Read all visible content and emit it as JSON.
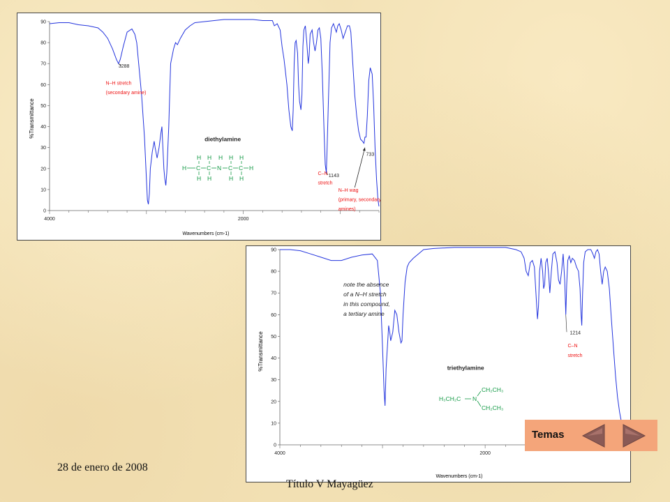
{
  "chart_data": [
    {
      "type": "line",
      "compound": "diethylamine",
      "xlabel": "Wavenumbers (cm-1)",
      "ylabel": "%Transmittance",
      "xlim": [
        4000,
        600
      ],
      "ylim": [
        0,
        90
      ],
      "x_ticks": [
        4000,
        2000
      ],
      "x_tick_labels": [
        "4000",
        "2000"
      ],
      "y_ticks": [
        0,
        10,
        20,
        30,
        40,
        50,
        60,
        70,
        80,
        90
      ],
      "y_tick_labels": [
        "0",
        "10",
        "20",
        "30",
        "40",
        "50",
        "60",
        "70",
        "80",
        "90"
      ],
      "series": [
        {
          "values": [
            [
              4000,
              89
            ],
            [
              3900,
              89.5
            ],
            [
              3800,
              89.5
            ],
            [
              3700,
              88.5
            ],
            [
              3600,
              88
            ],
            [
              3500,
              87
            ],
            [
              3450,
              85
            ],
            [
              3400,
              82
            ],
            [
              3350,
              77
            ],
            [
              3310,
              72
            ],
            [
              3288,
              70
            ],
            [
              3270,
              72
            ],
            [
              3240,
              78
            ],
            [
              3200,
              85
            ],
            [
              3150,
              86.5
            ],
            [
              3120,
              84
            ],
            [
              3100,
              80
            ],
            [
              3080,
              70
            ],
            [
              3050,
              55
            ],
            [
              3020,
              35
            ],
            [
              3000,
              15
            ],
            [
              2990,
              5
            ],
            [
              2980,
              3
            ],
            [
              2970,
              8
            ],
            [
              2960,
              20
            ],
            [
              2940,
              28
            ],
            [
              2920,
              33
            ],
            [
              2910,
              30
            ],
            [
              2890,
              25
            ],
            [
              2870,
              30
            ],
            [
              2850,
              37
            ],
            [
              2840,
              40
            ],
            [
              2820,
              20
            ],
            [
              2810,
              15
            ],
            [
              2800,
              12
            ],
            [
              2790,
              18
            ],
            [
              2770,
              40
            ],
            [
              2750,
              70
            ],
            [
              2720,
              77
            ],
            [
              2700,
              80
            ],
            [
              2680,
              79
            ],
            [
              2650,
              82
            ],
            [
              2600,
              86
            ],
            [
              2550,
              88
            ],
            [
              2500,
              89.5
            ],
            [
              2300,
              90.5
            ],
            [
              2200,
              91
            ],
            [
              2100,
              91
            ],
            [
              2000,
              91
            ],
            [
              1900,
              91
            ],
            [
              1800,
              90.5
            ],
            [
              1700,
              90.5
            ],
            [
              1680,
              88
            ],
            [
              1650,
              89
            ],
            [
              1620,
              86
            ],
            [
              1600,
              78
            ],
            [
              1580,
              72
            ],
            [
              1550,
              60
            ],
            [
              1530,
              48
            ],
            [
              1510,
              40
            ],
            [
              1495,
              38
            ],
            [
              1485,
              48
            ],
            [
              1475,
              70
            ],
            [
              1465,
              80
            ],
            [
              1455,
              81
            ],
            [
              1440,
              75
            ],
            [
              1430,
              60
            ],
            [
              1420,
              52
            ],
            [
              1405,
              48
            ],
            [
              1395,
              55
            ],
            [
              1385,
              78
            ],
            [
              1375,
              86
            ],
            [
              1360,
              88
            ],
            [
              1345,
              80
            ],
            [
              1330,
              70
            ],
            [
              1320,
              74
            ],
            [
              1310,
              84
            ],
            [
              1290,
              86
            ],
            [
              1275,
              80
            ],
            [
              1260,
              76
            ],
            [
              1245,
              80
            ],
            [
              1230,
              86
            ],
            [
              1215,
              87
            ],
            [
              1200,
              82
            ],
            [
              1185,
              65
            ],
            [
              1165,
              35
            ],
            [
              1155,
              22
            ],
            [
              1143,
              18
            ],
            [
              1135,
              30
            ],
            [
              1120,
              55
            ],
            [
              1105,
              80
            ],
            [
              1090,
              87
            ],
            [
              1070,
              89
            ],
            [
              1055,
              87
            ],
            [
              1040,
              85
            ],
            [
              1025,
              88
            ],
            [
              1010,
              89
            ],
            [
              990,
              86
            ],
            [
              970,
              82
            ],
            [
              955,
              84
            ],
            [
              940,
              86
            ],
            [
              925,
              88
            ],
            [
              905,
              88
            ],
            [
              890,
              85
            ],
            [
              870,
              70
            ],
            [
              850,
              55
            ],
            [
              830,
              45
            ],
            [
              810,
              38
            ],
            [
              790,
              34
            ],
            [
              770,
              33
            ],
            [
              755,
              32
            ],
            [
              745,
              35
            ],
            [
              733,
              35
            ],
            [
              720,
              45
            ],
            [
              705,
              62
            ],
            [
              690,
              68
            ],
            [
              670,
              65
            ],
            [
              655,
              50
            ],
            [
              640,
              30
            ],
            [
              625,
              15
            ],
            [
              610,
              5
            ],
            [
              600,
              2
            ]
          ]
        }
      ],
      "annotations": [
        {
          "text": "3288",
          "x": 3288,
          "y": 68
        },
        {
          "text": "N–H stretch",
          "x": 3420,
          "y": 60,
          "color": "#ee1111"
        },
        {
          "text": "(secondary amine)",
          "x": 3420,
          "y": 55.5,
          "color": "#ee1111"
        },
        {
          "text": "1143",
          "x": 1120,
          "y": 16
        },
        {
          "text": "C–N",
          "x": 1230,
          "y": 17,
          "color": "#ee1111"
        },
        {
          "text": "stretch",
          "x": 1230,
          "y": 12.5,
          "color": "#ee1111"
        },
        {
          "text": "733",
          "x": 733,
          "y": 26
        },
        {
          "text": "N–H wag",
          "x": 1020,
          "y": 9,
          "color": "#ee1111"
        },
        {
          "text": "(primary, secondary",
          "x": 1020,
          "y": 4.5,
          "color": "#ee1111"
        },
        {
          "text": "amines)",
          "x": 1020,
          "y": 0,
          "color": "#ee1111"
        },
        {
          "text": "diethylamine",
          "x": 2400,
          "y": 33
        }
      ]
    },
    {
      "type": "line",
      "compound": "triethylamine",
      "xlabel": "Wavenumbers (cm-1)",
      "ylabel": "%Transmittance",
      "xlim": [
        4000,
        600
      ],
      "ylim": [
        0,
        90
      ],
      "x_ticks": [
        4000,
        2000
      ],
      "x_tick_labels": [
        "4000",
        "2000"
      ],
      "y_ticks": [
        0,
        10,
        20,
        30,
        40,
        50,
        60,
        70,
        80,
        90
      ],
      "y_tick_labels": [
        "0",
        "10",
        "20",
        "30",
        "40",
        "50",
        "60",
        "70",
        "80",
        "90"
      ],
      "series": [
        {
          "values": [
            [
              4000,
              90
            ],
            [
              3900,
              90
            ],
            [
              3800,
              89.5
            ],
            [
              3700,
              88
            ],
            [
              3600,
              86.5
            ],
            [
              3500,
              85
            ],
            [
              3400,
              85
            ],
            [
              3300,
              86.5
            ],
            [
              3200,
              87.5
            ],
            [
              3100,
              88
            ],
            [
              3050,
              85
            ],
            [
              3020,
              70
            ],
            [
              3000,
              45
            ],
            [
              2985,
              25
            ],
            [
              2975,
              18
            ],
            [
              2965,
              35
            ],
            [
              2950,
              47
            ],
            [
              2940,
              55
            ],
            [
              2930,
              52
            ],
            [
              2920,
              48
            ],
            [
              2900,
              52
            ],
            [
              2880,
              62
            ],
            [
              2860,
              60
            ],
            [
              2840,
              52
            ],
            [
              2820,
              47
            ],
            [
              2810,
              48
            ],
            [
              2800,
              60
            ],
            [
              2780,
              75
            ],
            [
              2760,
              82
            ],
            [
              2740,
              84
            ],
            [
              2700,
              86
            ],
            [
              2650,
              88
            ],
            [
              2600,
              90
            ],
            [
              2500,
              90.5
            ],
            [
              2300,
              91
            ],
            [
              2000,
              91
            ],
            [
              1800,
              91
            ],
            [
              1700,
              90
            ],
            [
              1650,
              89
            ],
            [
              1620,
              86
            ],
            [
              1600,
              80
            ],
            [
              1580,
              78
            ],
            [
              1560,
              84
            ],
            [
              1540,
              85
            ],
            [
              1520,
              82
            ],
            [
              1505,
              70
            ],
            [
              1490,
              58
            ],
            [
              1480,
              64
            ],
            [
              1470,
              80
            ],
            [
              1455,
              86
            ],
            [
              1440,
              80
            ],
            [
              1430,
              72
            ],
            [
              1420,
              74
            ],
            [
              1410,
              84
            ],
            [
              1395,
              86
            ],
            [
              1380,
              78
            ],
            [
              1370,
              70
            ],
            [
              1355,
              80
            ],
            [
              1340,
              88
            ],
            [
              1320,
              89
            ],
            [
              1300,
              84
            ],
            [
              1285,
              76
            ],
            [
              1270,
              74
            ],
            [
              1255,
              80
            ],
            [
              1240,
              88
            ],
            [
              1225,
              76
            ],
            [
              1214,
              60
            ],
            [
              1205,
              74
            ],
            [
              1195,
              85
            ],
            [
              1180,
              87
            ],
            [
              1165,
              84
            ],
            [
              1150,
              86
            ],
            [
              1130,
              85
            ],
            [
              1110,
              82
            ],
            [
              1090,
              80
            ],
            [
              1075,
              72
            ],
            [
              1065,
              60
            ],
            [
              1058,
              55
            ],
            [
              1050,
              70
            ],
            [
              1040,
              84
            ],
            [
              1025,
              89
            ],
            [
              1000,
              90
            ],
            [
              970,
              90
            ],
            [
              950,
              88
            ],
            [
              935,
              86
            ],
            [
              920,
              89
            ],
            [
              905,
              90
            ],
            [
              890,
              88
            ],
            [
              875,
              80
            ],
            [
              860,
              74
            ],
            [
              845,
              80
            ],
            [
              830,
              82
            ],
            [
              810,
              80
            ],
            [
              790,
              72
            ],
            [
              770,
              58
            ],
            [
              750,
              45
            ],
            [
              730,
              32
            ],
            [
              710,
              22
            ],
            [
              690,
              15
            ],
            [
              670,
              10
            ],
            [
              650,
              5
            ],
            [
              630,
              2
            ],
            [
              615,
              1
            ]
          ]
        }
      ],
      "annotations": [
        {
          "text": "note the absence",
          "x": 3380,
          "y": 73
        },
        {
          "text": "of a N–H stretch",
          "x": 3380,
          "y": 68.5
        },
        {
          "text": "in this compound,",
          "x": 3380,
          "y": 64
        },
        {
          "text": "a tertiary amine",
          "x": 3380,
          "y": 59.5
        },
        {
          "text": "1214",
          "x": 1175,
          "y": 51
        },
        {
          "text": "C–N",
          "x": 1195,
          "y": 45,
          "color": "#ee1111"
        },
        {
          "text": "stretch",
          "x": 1195,
          "y": 40.5,
          "color": "#ee1111"
        },
        {
          "text": "triethylamine",
          "x": 2370,
          "y": 34.5
        }
      ]
    }
  ],
  "structures": {
    "diethylamine": {
      "h_row": [
        "H",
        "H",
        "H",
        "H",
        "H"
      ],
      "atoms": [
        "H",
        "C",
        "C",
        "N",
        "C",
        "C",
        "H"
      ]
    },
    "triethylamine": {
      "left_group": "H₃CH₂C",
      "n": "N",
      "upper_group": "CH₂CH₃",
      "lower_group": "CH₂CH₃"
    }
  },
  "footer": {
    "date": "28 de enero de 2008",
    "title": "Título V Mayagüez"
  },
  "nav": {
    "label": "Temas",
    "prev_icon": "triangle-left-icon",
    "next_icon": "triangle-right-icon",
    "color": "#f4a57a"
  },
  "colors": {
    "spectrum": "#2233dd",
    "annotation_red": "#ee1111",
    "structure_green": "#119944"
  }
}
